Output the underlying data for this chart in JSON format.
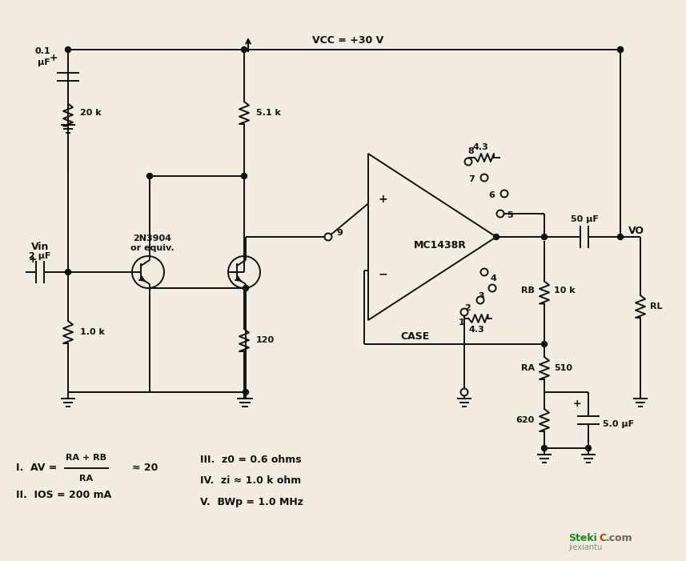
{
  "bg_color": "#f2ede0",
  "line_color": "#111111",
  "figsize": [
    8.57,
    7.01
  ],
  "dpi": 100,
  "annotations": {
    "vcc": "VCC = +30 V",
    "cap1_val1": "0.1",
    "cap1_val2": "μF",
    "cap2_val": "2 μF",
    "vin": "Vin",
    "r20k": "20 k",
    "r51k": "5.1 k",
    "r10k": "1.0 k",
    "r120": "120",
    "r2n3904": "2N3904",
    "or_equiv": "or equiv.",
    "mc1438r": "MC1438R",
    "case": "CASE",
    "r43": "4.3",
    "pin8": "8",
    "pin7": "7",
    "pin6": "6",
    "pin5": "5",
    "pin4": "4",
    "pin3": "3",
    "pin2": "2",
    "pin1": "1",
    "pin9": "9",
    "cap50_val": "50 μF",
    "vo": "VO",
    "rl": "RL",
    "rb": "RB",
    "r10k2": "10 k",
    "ra": "RA",
    "r510": "510",
    "r620": "620",
    "cap5_val": "5.0 μF",
    "plus": "+",
    "eq1_pre": "I.  AV =",
    "eq1_approx": "≈ 20",
    "eq1_num": "RA + RB",
    "eq1_den": "RA",
    "eq2": "II.  IOS = 200 mA",
    "eq3": "III.  z0 = 0.6 ohms",
    "eq4": "IV.  zi ≈ 1.0 k ohm",
    "eq5": "V.  BWp = 1.0 MHz"
  }
}
